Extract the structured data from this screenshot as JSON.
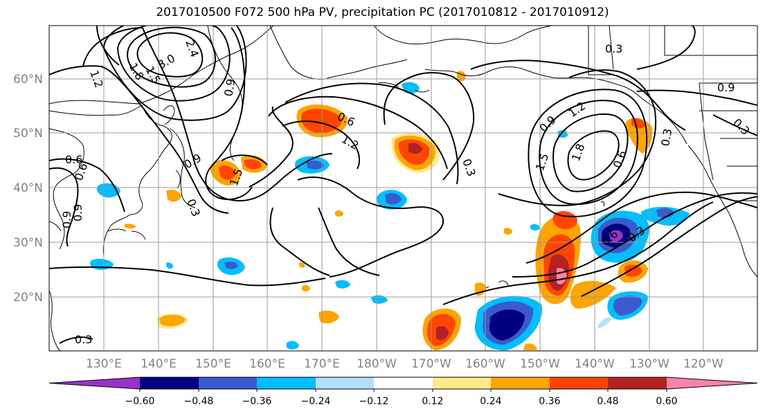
{
  "title": "2017010500 F072 500 hPa PV, precipitation PC (2017010812 - 2017010912)",
  "lat_labels": [
    "60°N",
    "50°N",
    "40°N",
    "30°N",
    "20°N"
  ],
  "lon_labels": [
    "130°E",
    "140°E",
    "150°E",
    "160°E",
    "170°E",
    "180°W",
    "170°W",
    "160°W",
    "150°W",
    "140°W",
    "130°W",
    "120°W"
  ],
  "colorbar": {
    "colors": [
      "#9932CC",
      "#000080",
      "#3A5BCC",
      "#00BFFF",
      "#B0E2FF",
      "#FFFFFF",
      "#FFE98A",
      "#FFA500",
      "#FF4500",
      "#B22222",
      "#FF82AB"
    ],
    "tick_labels": [
      "−0.60",
      "−0.48",
      "−0.36",
      "−0.24",
      "−0.12",
      "0.12",
      "0.24",
      "0.36",
      "0.48",
      "0.60"
    ]
  },
  "contour_labels": [
    "2.4",
    "3.0",
    "1.8",
    "1.5",
    "1.2",
    "0.9",
    "0.6",
    "0.3",
    "0.6",
    "1.2",
    "0.3",
    "0.9",
    "1.2",
    "1.5",
    "1.8",
    "0.9",
    "0.6",
    "0.3",
    "0.9",
    "0.3",
    "0.3",
    "0.6",
    "0.9",
    "0.3",
    "1.5",
    "0.3",
    "0.6",
    "0.9"
  ]
}
